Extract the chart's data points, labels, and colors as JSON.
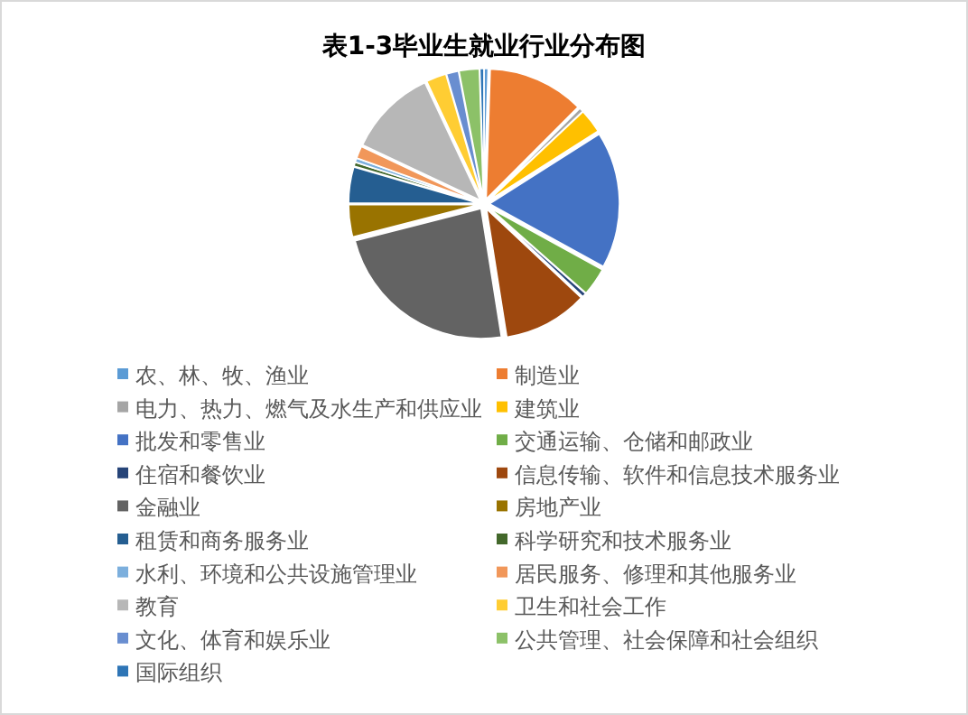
{
  "chart_data": {
    "type": "pie",
    "title": "表1-3毕业生就业行业分布图",
    "categories": [
      "农、林、牧、渔业",
      "制造业",
      "电力、热力、燃气及水生产和供应业",
      "建筑业",
      "批发和零售业",
      "交通运输、仓储和邮政业",
      "住宿和餐饮业",
      "信息传输、软件和信息技术服务业",
      "金融业",
      "房地产业",
      "租赁和商务服务业",
      "科学研究和技术服务业",
      "水利、环境和公共设施管理业",
      "居民服务、修理和其他服务业",
      "教育",
      "卫生和社会工作",
      "文化、体育和娱乐业",
      "公共管理、社会保障和社会组织",
      "国际组织"
    ],
    "values": [
      0.5,
      12,
      0.5,
      3,
      17,
      3.5,
      0.5,
      10.5,
      23.5,
      4,
      4.5,
      0.5,
      0.5,
      1.5,
      11,
      2.5,
      1.5,
      2.5,
      0.5
    ],
    "colors": [
      "#5b9bd5",
      "#ed7d31",
      "#a5a5a5",
      "#ffc000",
      "#4472c4",
      "#70ad47",
      "#264478",
      "#9e480e",
      "#636363",
      "#997300",
      "#255e91",
      "#43682b",
      "#7cafdd",
      "#f1975a",
      "#b7b7b7",
      "#ffcd33",
      "#698ed0",
      "#8cc168",
      "#2e75b6"
    ],
    "legend": "bottom"
  }
}
